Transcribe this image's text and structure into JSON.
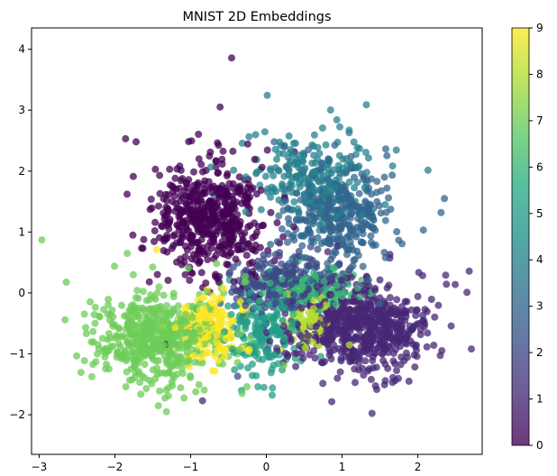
{
  "chart_data": {
    "type": "scatter",
    "title": "MNIST 2D Embeddings",
    "xlabel": "",
    "ylabel": "",
    "xlim": [
      -3.1,
      2.85
    ],
    "ylim": [
      -2.65,
      4.35
    ],
    "xticks": [
      -3,
      -2,
      -1,
      0,
      1,
      2
    ],
    "yticks": [
      -2,
      -1,
      0,
      1,
      2,
      3,
      4
    ],
    "grid": false,
    "legend": "none",
    "colormap": "viridis",
    "point_alpha": 0.75,
    "colorbar": {
      "min": 0,
      "max": 9,
      "ticks": [
        0,
        1,
        2,
        3,
        4,
        5,
        6,
        7,
        8,
        9
      ]
    },
    "clusters": [
      {
        "label": 0,
        "center": [
          -0.75,
          1.25
        ],
        "spread": [
          0.35,
          0.45
        ],
        "approx_points": 2100
      },
      {
        "label": 1,
        "center": [
          1.25,
          -0.55
        ],
        "spread": [
          0.45,
          0.35
        ],
        "approx_points": 2600
      },
      {
        "label": 2,
        "center": [
          0.15,
          0.15
        ],
        "spread": [
          0.3,
          0.25
        ],
        "approx_points": 900
      },
      {
        "label": 3,
        "center": [
          0.95,
          1.25
        ],
        "spread": [
          0.35,
          0.4
        ],
        "approx_points": 1400
      },
      {
        "label": 4,
        "center": [
          0.55,
          1.9
        ],
        "spread": [
          0.4,
          0.35
        ],
        "approx_points": 900
      },
      {
        "label": 5,
        "center": [
          -0.05,
          -0.7
        ],
        "spread": [
          0.25,
          0.35
        ],
        "approx_points": 700
      },
      {
        "label": 6,
        "center": [
          0.6,
          0.05
        ],
        "spread": [
          0.3,
          0.15
        ],
        "approx_points": 600
      },
      {
        "label": 7,
        "center": [
          -1.4,
          -0.75
        ],
        "spread": [
          0.4,
          0.35
        ],
        "approx_points": 2300
      },
      {
        "label": 8,
        "center": [
          0.55,
          -0.5
        ],
        "spread": [
          0.15,
          0.2
        ],
        "approx_points": 300
      },
      {
        "label": 9,
        "center": [
          -0.75,
          -0.55
        ],
        "spread": [
          0.2,
          0.25
        ],
        "approx_points": 700
      }
    ]
  }
}
